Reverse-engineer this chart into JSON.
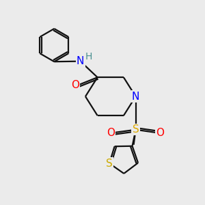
{
  "background_color": "#ebebeb",
  "atom_color_N": "#0000ff",
  "atom_color_O": "#ff0000",
  "atom_color_S_sulfonyl": "#ddaa00",
  "atom_color_S_thio": "#ccaa00",
  "atom_color_H": "#4a9090",
  "bond_color": "#111111",
  "line_width": 1.6,
  "figsize": [
    3.0,
    3.0
  ],
  "dpi": 100,
  "xlim": [
    0,
    10
  ],
  "ylim": [
    0,
    10
  ]
}
